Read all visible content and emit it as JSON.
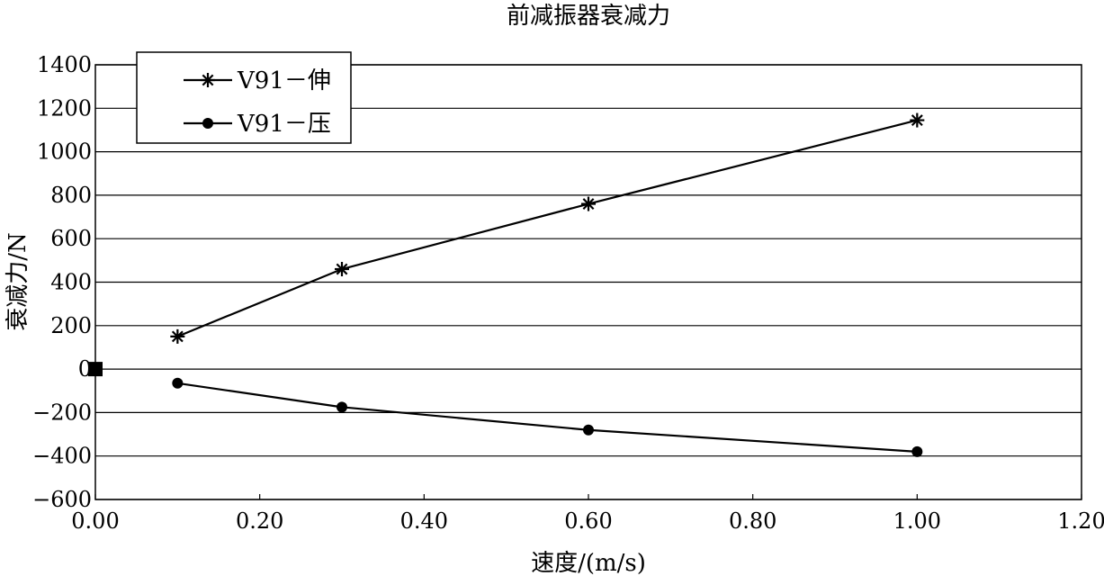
{
  "chart_data": {
    "type": "line",
    "title": "前减振器衰减力",
    "xlabel": "速度/(m/s)",
    "ylabel": "衰减力/N",
    "xlim": [
      0.0,
      1.2
    ],
    "ylim": [
      -600,
      1400
    ],
    "x_ticks": [
      "0.00",
      "0.20",
      "0.40",
      "0.60",
      "0.80",
      "1.00",
      "1.20"
    ],
    "x_tick_values": [
      0.0,
      0.2,
      0.4,
      0.6,
      0.8,
      1.0,
      1.2
    ],
    "y_ticks": [
      "1400",
      "1200",
      "1000",
      "800",
      "600",
      "400",
      "200",
      "0",
      "−200",
      "−400",
      "−600"
    ],
    "y_tick_values": [
      1400,
      1200,
      1000,
      800,
      600,
      400,
      200,
      0,
      -200,
      -400,
      -600
    ],
    "grid": "horizontal",
    "legend_position": "top-left",
    "series": [
      {
        "name": "V91－伸",
        "marker": "asterisk",
        "x": [
          0.1,
          0.3,
          0.6,
          1.0
        ],
        "y": [
          150,
          460,
          760,
          1145
        ]
      },
      {
        "name": "V91－压",
        "marker": "circle",
        "x": [
          0.1,
          0.3,
          0.6,
          1.0
        ],
        "y": [
          -65,
          -175,
          -280,
          -380
        ]
      }
    ],
    "origin_marker": {
      "x": 0.0,
      "y": 0
    }
  }
}
